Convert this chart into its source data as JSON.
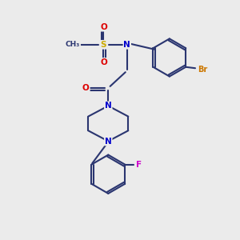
{
  "bg_color": "#ebebeb",
  "bond_color": "#2a3570",
  "bond_width": 1.5,
  "atom_colors": {
    "N": "#0000cc",
    "O": "#dd0000",
    "S": "#ccaa00",
    "Br": "#cc7700",
    "F": "#cc00cc",
    "C": "#2a3570"
  },
  "figsize": [
    3.0,
    3.0
  ],
  "dpi": 100
}
